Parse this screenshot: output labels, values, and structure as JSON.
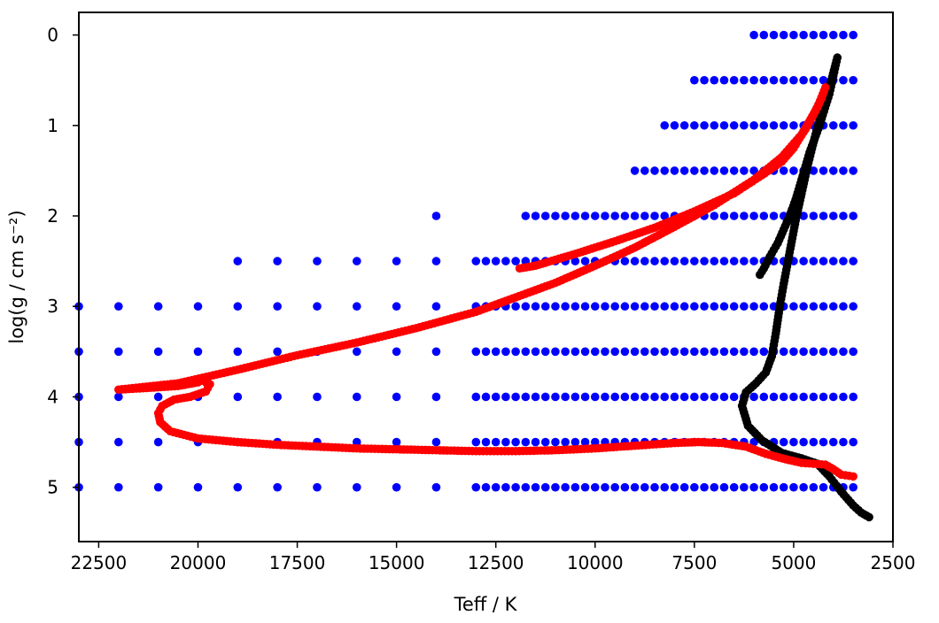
{
  "chart_data": {
    "type": "scatter",
    "title": "",
    "xlabel": "Teff / K",
    "ylabel": "log(g / cm s⁻²)",
    "xlim": [
      23000,
      2500
    ],
    "ylim": [
      5.6,
      -0.25
    ],
    "x_inverted": true,
    "y_inverted": true,
    "grid": false,
    "legend": "none",
    "xticks": [
      22500,
      20000,
      17500,
      15000,
      12500,
      10000,
      7500,
      5000,
      2500
    ],
    "yticks": [
      0,
      1,
      2,
      3,
      4,
      5
    ],
    "series": [
      {
        "color": "#0000ff",
        "kind": "grid-points",
        "rows": [
          {
            "y": 0.0,
            "teff_min": 6000,
            "teff_max": 3500,
            "step": 250
          },
          {
            "y": 0.5,
            "teff_min": 7500,
            "teff_max": 3500,
            "step": 250
          },
          {
            "y": 1.0,
            "teff_min": 8250,
            "teff_max": 3500,
            "step": 250
          },
          {
            "y": 1.5,
            "teff_min": 9000,
            "teff_max": 3500,
            "step": 250
          },
          {
            "y": 2.0,
            "teff_min": 11750,
            "teff_max": 3500,
            "step": 250,
            "extra": [
              14000
            ]
          },
          {
            "y": 2.5,
            "teff_min": 13000,
            "teff_max": 3500,
            "step": 250,
            "extra": [
              19000,
              18000,
              17000,
              16000,
              15000,
              14000
            ]
          },
          {
            "y": 3.0,
            "teff_min": 13000,
            "teff_max": 3500,
            "step": 250,
            "extra": [
              23000,
              22000,
              21000,
              20000,
              19000,
              18000,
              17000,
              16000,
              15000,
              14000
            ]
          },
          {
            "y": 3.5,
            "teff_min": 13000,
            "teff_max": 3500,
            "step": 250,
            "extra": [
              23000,
              22000,
              21000,
              20000,
              19000,
              18000,
              17000,
              16000,
              15000,
              14000
            ]
          },
          {
            "y": 4.0,
            "teff_min": 13000,
            "teff_max": 3500,
            "step": 250,
            "extra": [
              23000,
              22000,
              21000,
              20000,
              19000,
              18000,
              17000,
              16000,
              15000,
              14000
            ]
          },
          {
            "y": 4.5,
            "teff_min": 13000,
            "teff_max": 3500,
            "step": 250,
            "extra": [
              23000,
              22000,
              21000,
              20000,
              19000,
              18000,
              17000,
              16000,
              15000,
              14000
            ]
          },
          {
            "y": 5.0,
            "teff_min": 13000,
            "teff_max": 3500,
            "step": 250,
            "extra": [
              23000,
              22000,
              21000,
              20000,
              19000,
              18000,
              17000,
              16000,
              15000,
              14000
            ]
          }
        ]
      },
      {
        "color": "#ff0000",
        "kind": "track",
        "points": [
          [
            3500,
            4.88
          ],
          [
            3800,
            4.86
          ],
          [
            4000,
            4.8
          ],
          [
            4200,
            4.75
          ],
          [
            4500,
            4.74
          ],
          [
            4800,
            4.73
          ],
          [
            5200,
            4.69
          ],
          [
            5700,
            4.63
          ],
          [
            6200,
            4.55
          ],
          [
            6800,
            4.51
          ],
          [
            7400,
            4.5
          ],
          [
            8000,
            4.51
          ],
          [
            9000,
            4.54
          ],
          [
            10000,
            4.57
          ],
          [
            11000,
            4.59
          ],
          [
            12000,
            4.6
          ],
          [
            13000,
            4.6
          ],
          [
            14000,
            4.59
          ],
          [
            15000,
            4.58
          ],
          [
            16000,
            4.57
          ],
          [
            17000,
            4.55
          ],
          [
            18000,
            4.53
          ],
          [
            19000,
            4.5
          ],
          [
            20000,
            4.46
          ],
          [
            20700,
            4.38
          ],
          [
            20950,
            4.28
          ],
          [
            21000,
            4.18
          ],
          [
            20900,
            4.1
          ],
          [
            20600,
            4.03
          ],
          [
            20200,
            4.0
          ],
          [
            19800,
            3.94
          ],
          [
            19700,
            3.86
          ],
          [
            19900,
            3.82
          ],
          [
            20000,
            3.84
          ],
          [
            20500,
            3.88
          ],
          [
            21200,
            3.9
          ],
          [
            22000,
            3.92
          ],
          [
            20500,
            3.85
          ],
          [
            19000,
            3.7
          ],
          [
            17500,
            3.54
          ],
          [
            16000,
            3.4
          ],
          [
            14500,
            3.24
          ],
          [
            13000,
            3.06
          ],
          [
            12000,
            2.9
          ],
          [
            11000,
            2.74
          ],
          [
            10000,
            2.55
          ],
          [
            9000,
            2.35
          ],
          [
            8000,
            2.12
          ],
          [
            7000,
            1.88
          ],
          [
            6000,
            1.6
          ],
          [
            5300,
            1.35
          ],
          [
            4800,
            1.1
          ],
          [
            4400,
            0.8
          ],
          [
            4200,
            0.58
          ],
          [
            4300,
            0.7
          ],
          [
            4500,
            0.88
          ],
          [
            4700,
            1.04
          ],
          [
            4850,
            1.14
          ],
          [
            5000,
            1.25
          ],
          [
            5300,
            1.4
          ],
          [
            5800,
            1.55
          ],
          [
            6500,
            1.75
          ],
          [
            7500,
            1.95
          ],
          [
            8500,
            2.13
          ],
          [
            9500,
            2.28
          ],
          [
            10500,
            2.42
          ],
          [
            11500,
            2.55
          ],
          [
            11900,
            2.58
          ]
        ]
      },
      {
        "color": "#000000",
        "kind": "track",
        "points": [
          [
            3100,
            5.33
          ],
          [
            3300,
            5.28
          ],
          [
            3500,
            5.2
          ],
          [
            3800,
            5.05
          ],
          [
            4100,
            4.88
          ],
          [
            4400,
            4.74
          ],
          [
            4800,
            4.68
          ],
          [
            5300,
            4.62
          ],
          [
            5800,
            4.48
          ],
          [
            6150,
            4.32
          ],
          [
            6300,
            4.1
          ],
          [
            6200,
            3.95
          ],
          [
            5950,
            3.85
          ],
          [
            5700,
            3.73
          ],
          [
            5550,
            3.55
          ],
          [
            5450,
            3.3
          ],
          [
            5350,
            3.0
          ],
          [
            5250,
            2.75
          ],
          [
            5100,
            2.4
          ],
          [
            4950,
            2.05
          ],
          [
            4800,
            1.75
          ],
          [
            4650,
            1.45
          ],
          [
            4450,
            1.1
          ],
          [
            4250,
            0.8
          ],
          [
            4050,
            0.5
          ],
          [
            3900,
            0.25
          ],
          [
            4100,
            0.65
          ],
          [
            4350,
            1.0
          ],
          [
            4600,
            1.3
          ],
          [
            4800,
            1.6
          ],
          [
            4950,
            1.82
          ],
          [
            5100,
            2.0
          ],
          [
            5250,
            2.15
          ],
          [
            5400,
            2.3
          ],
          [
            5600,
            2.45
          ],
          [
            5750,
            2.58
          ],
          [
            5850,
            2.65
          ]
        ]
      }
    ]
  }
}
